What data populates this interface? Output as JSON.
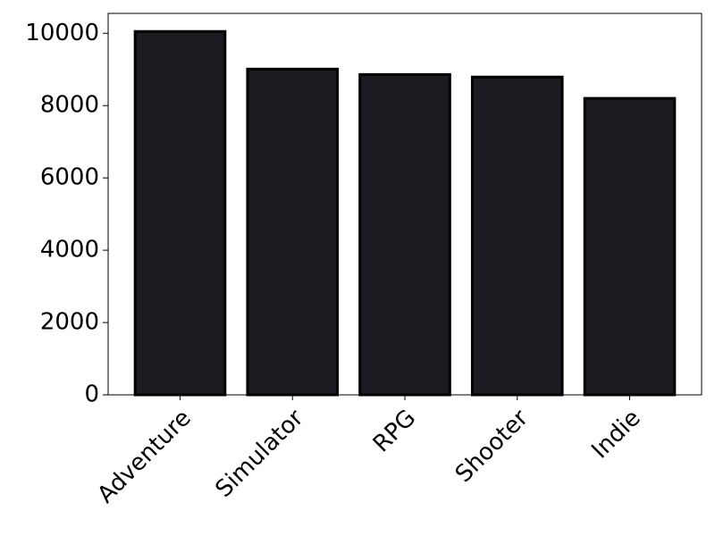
{
  "chart_data": {
    "type": "bar",
    "categories": [
      "Adventure",
      "Simulator",
      "RPG",
      "Shooter",
      "Indie"
    ],
    "values": [
      10050,
      9010,
      8860,
      8790,
      8200
    ],
    "color": "#1a1c22",
    "ylim": [
      0,
      10550
    ],
    "yticks": [
      0,
      2000,
      4000,
      6000,
      8000,
      10000
    ],
    "grid": false
  }
}
